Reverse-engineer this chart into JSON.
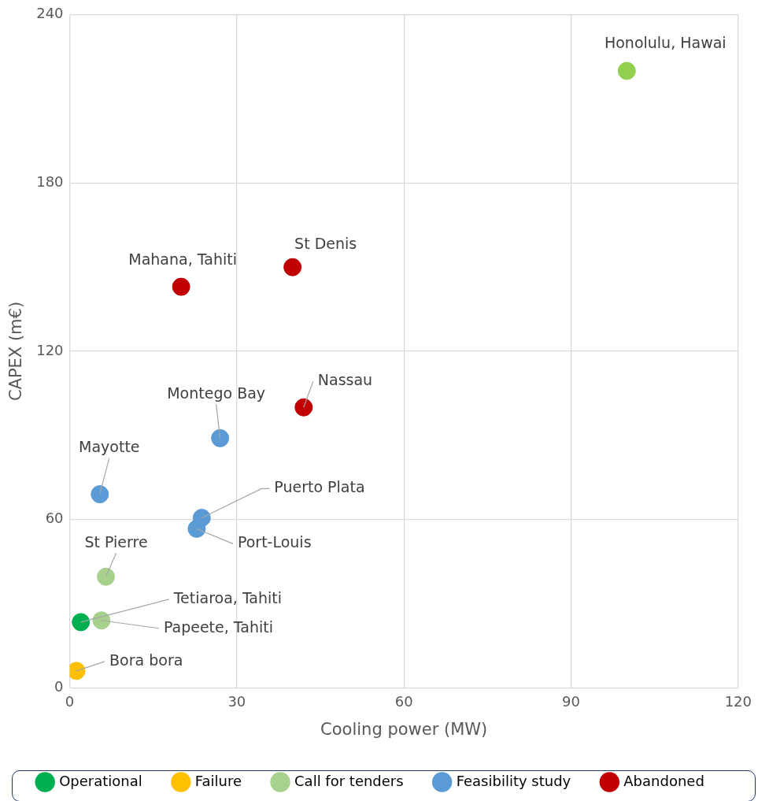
{
  "chart_data": {
    "type": "scatter",
    "xlabel": "Cooling power (MW)",
    "ylabel": "CAPEX (m€)",
    "xlim": [
      0,
      120
    ],
    "xticks": [
      0,
      30,
      60,
      90,
      120
    ],
    "ylim": [
      0,
      240
    ],
    "yticks": [
      0,
      60,
      120,
      180,
      240
    ],
    "grid": true,
    "legend": "bottom",
    "marker": "circle",
    "series": [
      {
        "name": "Operational",
        "color": "#00b050",
        "x": [
          2
        ],
        "values": [
          23.4
        ]
      },
      {
        "name": "Failure",
        "color": "#ffc000",
        "x": [
          1.2
        ],
        "values": [
          6
        ]
      },
      {
        "name": "Call for tenders",
        "color": "#a9d18e",
        "colors": [
          "#92d050",
          "#a9d18e",
          "#a9d18e"
        ],
        "x": [
          100,
          6.5,
          5.7
        ],
        "values": [
          220,
          39.6,
          24
        ]
      },
      {
        "name": "Feasibility study",
        "color": "#5b9bd5",
        "x": [
          27,
          5.4,
          23.7,
          22.8
        ],
        "values": [
          89,
          69,
          60.6,
          56.7
        ]
      },
      {
        "name": "Abandoned",
        "color": "#c00000",
        "x": [
          40,
          20,
          42
        ],
        "values": [
          150,
          143,
          100
        ]
      }
    ],
    "annotations": [
      {
        "text": "Honolulu, Hawai",
        "x": 100,
        "y": 220
      },
      {
        "text": "St Denis",
        "x": 40,
        "y": 150
      },
      {
        "text": "Mahana, Tahiti",
        "x": 20,
        "y": 143
      },
      {
        "text": "Nassau",
        "x": 42,
        "y": 100
      },
      {
        "text": "Montego Bay",
        "x": 27,
        "y": 89
      },
      {
        "text": "Mayotte",
        "x": 5.4,
        "y": 69
      },
      {
        "text": "Puerto Plata",
        "x": 23.7,
        "y": 60.6
      },
      {
        "text": "Port-Louis",
        "x": 22.8,
        "y": 56.7
      },
      {
        "text": "St Pierre",
        "x": 6.5,
        "y": 39.6
      },
      {
        "text": "Tetiaroa, Tahiti",
        "x": 2,
        "y": 23.4
      },
      {
        "text": "Papeete, Tahiti",
        "x": 5.7,
        "y": 24
      },
      {
        "text": "Bora bora",
        "x": 1.2,
        "y": 6
      }
    ]
  }
}
